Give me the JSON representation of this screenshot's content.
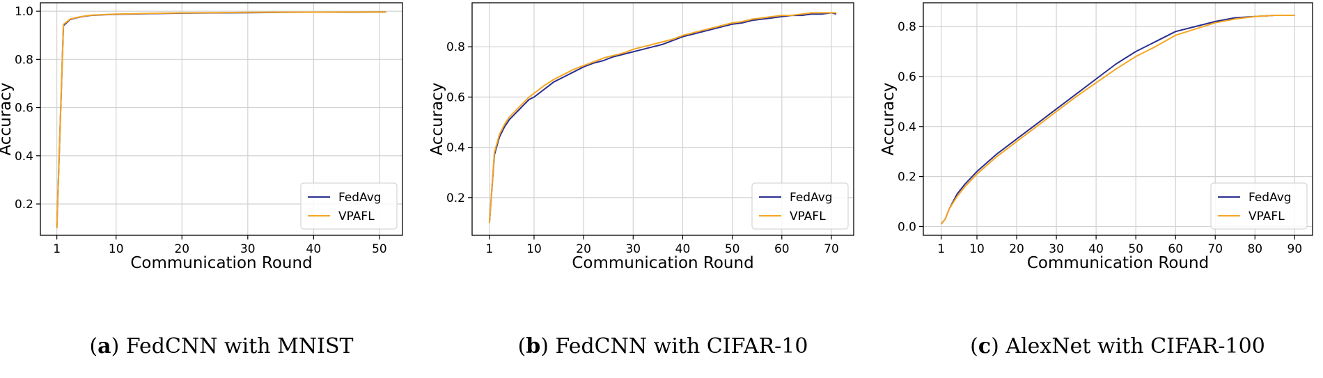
{
  "colors": {
    "FedAvg": "#2b2f8f",
    "VPAFL": "#f5a623",
    "grid": "#d2d2d2",
    "axis": "#000000"
  },
  "chart_data": [
    {
      "type": "line",
      "caption": {
        "letter": "a",
        "text": "FedCNN with MNIST"
      },
      "xlabel": "Communication Round",
      "ylabel": "Accuracy",
      "xlim": [
        -1.5,
        53.5
      ],
      "ylim": [
        0.07,
        1.035
      ],
      "xticks": [
        1,
        10,
        20,
        30,
        40,
        50
      ],
      "yticks": [
        0.2,
        0.4,
        0.6,
        0.8,
        1.0
      ],
      "ytick_labels": [
        "0.2",
        "0.4",
        "0.6",
        "0.8",
        "1.0"
      ],
      "grid": true,
      "legend": "lower right",
      "series": [
        {
          "name": "FedAvg",
          "x": [
            1,
            2,
            3,
            4,
            5,
            6,
            8,
            10,
            15,
            20,
            25,
            30,
            35,
            40,
            45,
            51
          ],
          "y": [
            0.1,
            0.94,
            0.965,
            0.973,
            0.978,
            0.982,
            0.985,
            0.987,
            0.99,
            0.992,
            0.993,
            0.994,
            0.995,
            0.996,
            0.996,
            0.997
          ]
        },
        {
          "name": "VPAFL",
          "x": [
            1,
            2,
            3,
            4,
            5,
            6,
            8,
            10,
            15,
            20,
            25,
            30,
            35,
            40,
            45,
            51
          ],
          "y": [
            0.1,
            0.945,
            0.967,
            0.974,
            0.979,
            0.983,
            0.986,
            0.988,
            0.991,
            0.993,
            0.994,
            0.995,
            0.996,
            0.996,
            0.997,
            0.997
          ]
        }
      ]
    },
    {
      "type": "line",
      "caption": {
        "letter": "b",
        "text": "FedCNN with CIFAR-10"
      },
      "xlabel": "Communication Round",
      "ylabel": "Accuracy",
      "xlim": [
        -2.5,
        74.5
      ],
      "ylim": [
        0.05,
        0.975
      ],
      "xticks": [
        1,
        10,
        20,
        30,
        40,
        50,
        60,
        70
      ],
      "yticks": [
        0.2,
        0.4,
        0.6,
        0.8
      ],
      "ytick_labels": [
        "0.2",
        "0.4",
        "0.6",
        "0.8"
      ],
      "grid": true,
      "legend": "lower right",
      "series": [
        {
          "name": "FedAvg",
          "x": [
            1,
            2,
            3,
            4,
            5,
            6,
            7,
            8,
            9,
            10,
            12,
            14,
            16,
            18,
            20,
            22,
            24,
            26,
            28,
            30,
            32,
            34,
            36,
            38,
            40,
            42,
            44,
            46,
            48,
            50,
            52,
            54,
            56,
            58,
            60,
            62,
            64,
            66,
            68,
            70,
            71
          ],
          "y": [
            0.1,
            0.37,
            0.44,
            0.48,
            0.51,
            0.53,
            0.55,
            0.57,
            0.59,
            0.6,
            0.63,
            0.66,
            0.68,
            0.7,
            0.72,
            0.735,
            0.745,
            0.76,
            0.77,
            0.78,
            0.79,
            0.8,
            0.81,
            0.825,
            0.84,
            0.85,
            0.86,
            0.87,
            0.88,
            0.89,
            0.895,
            0.905,
            0.91,
            0.915,
            0.92,
            0.925,
            0.925,
            0.93,
            0.93,
            0.935,
            0.93
          ]
        },
        {
          "name": "VPAFL",
          "x": [
            1,
            2,
            3,
            4,
            5,
            6,
            7,
            8,
            9,
            10,
            12,
            14,
            16,
            18,
            20,
            22,
            24,
            26,
            28,
            30,
            32,
            34,
            36,
            38,
            40,
            42,
            44,
            46,
            48,
            50,
            52,
            54,
            56,
            58,
            60,
            62,
            64,
            66,
            68,
            70,
            71
          ],
          "y": [
            0.1,
            0.38,
            0.45,
            0.49,
            0.52,
            0.54,
            0.56,
            0.58,
            0.6,
            0.615,
            0.645,
            0.67,
            0.69,
            0.71,
            0.725,
            0.74,
            0.755,
            0.765,
            0.775,
            0.79,
            0.8,
            0.81,
            0.82,
            0.83,
            0.845,
            0.855,
            0.865,
            0.875,
            0.885,
            0.895,
            0.9,
            0.91,
            0.915,
            0.92,
            0.925,
            0.925,
            0.93,
            0.935,
            0.935,
            0.935,
            0.935
          ]
        }
      ]
    },
    {
      "type": "line",
      "caption": {
        "letter": "c",
        "text": "AlexNet with CIFAR-100"
      },
      "xlabel": "Communication Round",
      "ylabel": "Accuracy",
      "xlim": [
        -3.5,
        94.5
      ],
      "ylim": [
        -0.035,
        0.895
      ],
      "xticks": [
        1,
        10,
        20,
        30,
        40,
        50,
        60,
        70,
        80,
        90
      ],
      "yticks": [
        0.0,
        0.2,
        0.4,
        0.6,
        0.8
      ],
      "ytick_labels": [
        "0.0",
        "0.2",
        "0.4",
        "0.6",
        "0.8"
      ],
      "grid": true,
      "legend": "lower right",
      "series": [
        {
          "name": "FedAvg",
          "x": [
            1,
            2,
            3,
            5,
            7,
            10,
            15,
            20,
            25,
            30,
            35,
            40,
            45,
            50,
            55,
            60,
            65,
            70,
            75,
            80,
            85,
            90
          ],
          "y": [
            0.01,
            0.03,
            0.07,
            0.13,
            0.17,
            0.22,
            0.29,
            0.35,
            0.41,
            0.47,
            0.53,
            0.59,
            0.65,
            0.7,
            0.74,
            0.78,
            0.8,
            0.82,
            0.835,
            0.84,
            0.845,
            0.845
          ]
        },
        {
          "name": "VPAFL",
          "x": [
            1,
            2,
            3,
            5,
            7,
            10,
            15,
            20,
            25,
            30,
            35,
            40,
            45,
            50,
            55,
            60,
            65,
            70,
            75,
            80,
            85,
            90
          ],
          "y": [
            0.01,
            0.03,
            0.07,
            0.12,
            0.16,
            0.21,
            0.28,
            0.34,
            0.4,
            0.46,
            0.52,
            0.575,
            0.63,
            0.68,
            0.72,
            0.765,
            0.79,
            0.815,
            0.83,
            0.84,
            0.845,
            0.845
          ]
        }
      ]
    }
  ]
}
